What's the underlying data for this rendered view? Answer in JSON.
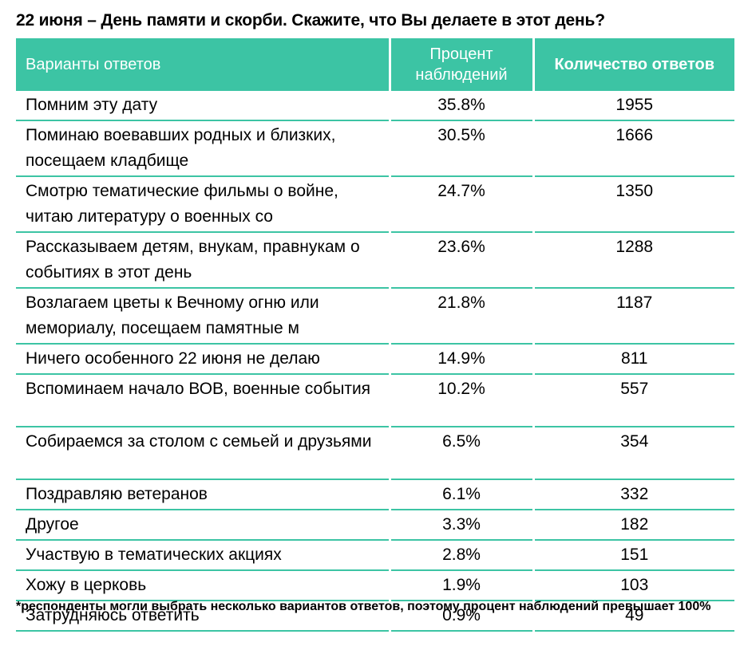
{
  "title": "22 июня – День памяти и скорби. Скажите, что Вы делаете в этот день?",
  "colors": {
    "header_bg": "#3cc4a4",
    "header_text": "#ffffff"
  },
  "table": {
    "headers": [
      "Варианты ответов",
      "Процент наблюдений",
      "Количество ответов"
    ],
    "rows": [
      {
        "option": "Помним эту дату",
        "percent": "35.8%",
        "count": "1955"
      },
      {
        "option": "Поминаю воевавших родных и близких, посещаем кладбище",
        "percent": "30.5%",
        "count": "1666"
      },
      {
        "option": "Смотрю тематические фильмы о войне, читаю литературу о военных со",
        "percent": "24.7%",
        "count": "1350"
      },
      {
        "option": "Рассказываем детям, внукам, правнукам о событиях в этот день",
        "percent": "23.6%",
        "count": "1288"
      },
      {
        "option": "Возлагаем цветы к Вечному огню или мемориалу, посещаем памятные м",
        "percent": "21.8%",
        "count": "1187"
      },
      {
        "option": "Ничего особенного 22 июня не делаю",
        "percent": "14.9%",
        "count": "811"
      },
      {
        "option": "Вспоминаем начало ВОВ, военные события",
        "percent": "10.2%",
        "count": "557"
      },
      {
        "option": "Собираемся за столом с семьей и друзьями",
        "percent": "6.5%",
        "count": "354"
      },
      {
        "option": "Поздравляю ветеранов",
        "percent": "6.1%",
        "count": "332"
      },
      {
        "option": "Другое",
        "percent": "3.3%",
        "count": "182"
      },
      {
        "option": "Участвую в тематических акциях",
        "percent": "2.8%",
        "count": "151"
      },
      {
        "option": "Хожу в церковь",
        "percent": "1.9%",
        "count": "103"
      },
      {
        "option": "Затрудняюсь ответить",
        "percent": "0.9%",
        "count": "49"
      }
    ]
  },
  "footnote": "*респонденты могли выбрать несколько вариантов ответов, поэтому процент наблюдений превышает 100%"
}
